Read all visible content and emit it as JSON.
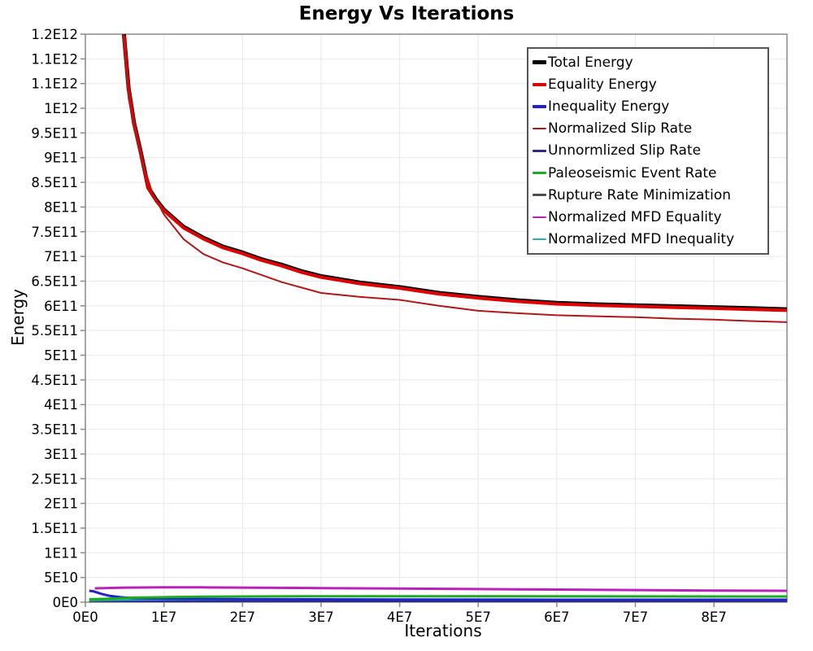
{
  "chart_data": {
    "type": "line",
    "title": "Energy Vs Iterations",
    "xlabel": "Iterations",
    "ylabel": "Energy",
    "grid": true,
    "legend_position": "top-right",
    "background_color": "#ffffff",
    "gridline_color": "#e9e9e9",
    "border_color": "#8a8a8a",
    "x_axis": {
      "min": 0,
      "max": 89300000.0,
      "ticks": [
        {
          "v": 0,
          "label": "0E0"
        },
        {
          "v": 10000000.0,
          "label": "1E7"
        },
        {
          "v": 20000000.0,
          "label": "2E7"
        },
        {
          "v": 30000000.0,
          "label": "3E7"
        },
        {
          "v": 40000000.0,
          "label": "4E7"
        },
        {
          "v": 50000000.0,
          "label": "5E7"
        },
        {
          "v": 60000000.0,
          "label": "6E7"
        },
        {
          "v": 70000000.0,
          "label": "7E7"
        },
        {
          "v": 80000000.0,
          "label": "8E7"
        }
      ]
    },
    "y_axis": {
      "min": 0,
      "max": 1150000000000.0,
      "ticks": [
        {
          "v": 1150000000000.0,
          "label": "1.2E12"
        },
        {
          "v": 1100000000000.0,
          "label": "1.1E12"
        },
        {
          "v": 1050000000000.0,
          "label": "1.1E12"
        },
        {
          "v": 1000000000000.0,
          "label": "1E12"
        },
        {
          "v": 950000000000.0,
          "label": "9.5E11"
        },
        {
          "v": 900000000000.0,
          "label": "9E11"
        },
        {
          "v": 850000000000.0,
          "label": "8.5E11"
        },
        {
          "v": 800000000000.0,
          "label": "8E11"
        },
        {
          "v": 750000000000.0,
          "label": "7.5E11"
        },
        {
          "v": 700000000000.0,
          "label": "7E11"
        },
        {
          "v": 650000000000.0,
          "label": "6.5E11"
        },
        {
          "v": 600000000000.0,
          "label": "6E11"
        },
        {
          "v": 550000000000.0,
          "label": "5.5E11"
        },
        {
          "v": 500000000000.0,
          "label": "5E11"
        },
        {
          "v": 450000000000.0,
          "label": "4.5E11"
        },
        {
          "v": 400000000000.0,
          "label": "4E11"
        },
        {
          "v": 350000000000.0,
          "label": "3.5E11"
        },
        {
          "v": 300000000000.0,
          "label": "3E11"
        },
        {
          "v": 250000000000.0,
          "label": "2.5E11"
        },
        {
          "v": 200000000000.0,
          "label": "2E11"
        },
        {
          "v": 150000000000.0,
          "label": "1.5E11"
        },
        {
          "v": 100000000000.0,
          "label": "1E11"
        },
        {
          "v": 50000000000.0,
          "label": "5E10"
        },
        {
          "v": 0,
          "label": "0E0"
        }
      ]
    },
    "series": [
      {
        "name": "Total Energy",
        "color": "#000000",
        "width": 5,
        "legend_thick": true,
        "points": [
          [
            4700000.0,
            1250000000000.0
          ],
          [
            4900000.0,
            1150000000000.0
          ],
          [
            5500000.0,
            1040000000000.0
          ],
          [
            6200000.0,
            970000000000.0
          ],
          [
            7000000.0,
            915000000000.0
          ],
          [
            8000000.0,
            840000000000.0
          ],
          [
            9000000.0,
            815000000000.0
          ],
          [
            10000000.0,
            795000000000.0
          ],
          [
            12500000.0,
            760000000000.0
          ],
          [
            15000000.0,
            738000000000.0
          ],
          [
            17500000.0,
            720000000000.0
          ],
          [
            20000000.0,
            708000000000.0
          ],
          [
            22500000.0,
            694000000000.0
          ],
          [
            25000000.0,
            683000000000.0
          ],
          [
            27500000.0,
            670000000000.0
          ],
          [
            30000000.0,
            660000000000.0
          ],
          [
            35000000.0,
            647000000000.0
          ],
          [
            40000000.0,
            638000000000.0
          ],
          [
            45000000.0,
            626000000000.0
          ],
          [
            50000000.0,
            618000000000.0
          ],
          [
            55000000.0,
            611000000000.0
          ],
          [
            60000000.0,
            606000000000.0
          ],
          [
            65000000.0,
            603000000000.0
          ],
          [
            70000000.0,
            601000000000.0
          ],
          [
            75000000.0,
            599000000000.0
          ],
          [
            80000000.0,
            597000000000.0
          ],
          [
            85000000.0,
            595000000000.0
          ],
          [
            89300000.0,
            593000000000.0
          ]
        ]
      },
      {
        "name": "Equality Energy",
        "color": "#e00000",
        "width": 4,
        "legend_thick": true,
        "points": [
          [
            4700000.0,
            1250000000000.0
          ],
          [
            4900000.0,
            1150000000000.0
          ],
          [
            5500000.0,
            1040000000000.0
          ],
          [
            6200000.0,
            970000000000.0
          ],
          [
            7000000.0,
            915000000000.0
          ],
          [
            8000000.0,
            840000000000.0
          ],
          [
            9000000.0,
            815000000000.0
          ],
          [
            10000000.0,
            795000000000.0
          ],
          [
            12500000.0,
            760000000000.0
          ],
          [
            15000000.0,
            738000000000.0
          ],
          [
            17500000.0,
            720000000000.0
          ],
          [
            20000000.0,
            708000000000.0
          ],
          [
            22500000.0,
            694000000000.0
          ],
          [
            25000000.0,
            683000000000.0
          ],
          [
            27500000.0,
            670000000000.0
          ],
          [
            30000000.0,
            660000000000.0
          ],
          [
            35000000.0,
            647000000000.0
          ],
          [
            40000000.0,
            638000000000.0
          ],
          [
            45000000.0,
            626000000000.0
          ],
          [
            50000000.0,
            618000000000.0
          ],
          [
            55000000.0,
            611000000000.0
          ],
          [
            60000000.0,
            606000000000.0
          ],
          [
            65000000.0,
            603000000000.0
          ],
          [
            70000000.0,
            601000000000.0
          ],
          [
            75000000.0,
            599000000000.0
          ],
          [
            80000000.0,
            597000000000.0
          ],
          [
            85000000.0,
            595000000000.0
          ],
          [
            89300000.0,
            593000000000.0
          ]
        ]
      },
      {
        "name": "Inequality Energy",
        "color": "#2222cc",
        "width": 3,
        "legend_thick": true,
        "points": [
          [
            500000.0,
            23000000000.0
          ],
          [
            1000000.0,
            22000000000.0
          ],
          [
            2000000.0,
            17000000000.0
          ],
          [
            3000000.0,
            13000000000.0
          ],
          [
            4500000.0,
            10000000000.0
          ],
          [
            6000000.0,
            8000000000.0
          ],
          [
            10000000.0,
            7000000000.0
          ],
          [
            20000000.0,
            6000000000.0
          ],
          [
            40000000.0,
            5500000000.0
          ],
          [
            60000000.0,
            5000000000.0
          ],
          [
            89300000.0,
            5000000000.0
          ]
        ]
      },
      {
        "name": "Normalized Slip Rate",
        "color": "#b01818",
        "width": 2,
        "legend_thick": false,
        "points": [
          [
            4600000.0,
            1250000000000.0
          ],
          [
            4800000.0,
            1150000000000.0
          ],
          [
            5500000.0,
            1020000000000.0
          ],
          [
            6500000.0,
            940000000000.0
          ],
          [
            7500000.0,
            880000000000.0
          ],
          [
            8500000.0,
            830000000000.0
          ],
          [
            10000000.0,
            785000000000.0
          ],
          [
            12500000.0,
            735000000000.0
          ],
          [
            15000000.0,
            705000000000.0
          ],
          [
            17500000.0,
            688000000000.0
          ],
          [
            20000000.0,
            676000000000.0
          ],
          [
            25000000.0,
            648000000000.0
          ],
          [
            30000000.0,
            626000000000.0
          ],
          [
            35000000.0,
            618000000000.0
          ],
          [
            40000000.0,
            612000000000.0
          ],
          [
            45000000.0,
            600000000000.0
          ],
          [
            50000000.0,
            590000000000.0
          ],
          [
            55000000.0,
            585000000000.0
          ],
          [
            60000000.0,
            581000000000.0
          ],
          [
            65000000.0,
            579000000000.0
          ],
          [
            70000000.0,
            577000000000.0
          ],
          [
            75000000.0,
            574000000000.0
          ],
          [
            80000000.0,
            572000000000.0
          ],
          [
            85000000.0,
            569000000000.0
          ],
          [
            89300000.0,
            567000000000.0
          ]
        ]
      },
      {
        "name": "Unnormlized Slip Rate",
        "color": "#2a2a8f",
        "width": 2,
        "legend_thick": false,
        "points": [
          [
            500000.0,
            3000000000.0
          ],
          [
            3000000.0,
            2000000000.0
          ],
          [
            10000000.0,
            1800000000.0
          ],
          [
            89300000.0,
            1800000000.0
          ]
        ]
      },
      {
        "name": "Paleoseismic Event Rate",
        "color": "#1faa1f",
        "width": 3,
        "legend_thick": false,
        "points": [
          [
            500000.0,
            6000000000.0
          ],
          [
            3000000.0,
            7000000000.0
          ],
          [
            6000000.0,
            9000000000.0
          ],
          [
            10000000.0,
            10000000000.0
          ],
          [
            15000000.0,
            11000000000.0
          ],
          [
            20000000.0,
            11500000000.0
          ],
          [
            30000000.0,
            12000000000.0
          ],
          [
            50000000.0,
            12000000000.0
          ],
          [
            89300000.0,
            11500000000.0
          ]
        ]
      },
      {
        "name": "Rupture Rate Minimization",
        "color": "#4d4d4d",
        "width": 2,
        "legend_thick": false,
        "points": [
          [
            500000.0,
            1500000000.0
          ],
          [
            5000000.0,
            1000000000.0
          ],
          [
            89300000.0,
            800000000.0
          ]
        ]
      },
      {
        "name": "Normalized MFD Equality",
        "color": "#bb22bb",
        "width": 3,
        "legend_thick": false,
        "points": [
          [
            1200000.0,
            28000000000.0
          ],
          [
            5000000.0,
            29500000000.0
          ],
          [
            10000000.0,
            30000000000.0
          ],
          [
            15000000.0,
            30000000000.0
          ],
          [
            20000000.0,
            29500000000.0
          ],
          [
            30000000.0,
            28500000000.0
          ],
          [
            40000000.0,
            27500000000.0
          ],
          [
            50000000.0,
            26500000000.0
          ],
          [
            60000000.0,
            25500000000.0
          ],
          [
            70000000.0,
            24500000000.0
          ],
          [
            80000000.0,
            23500000000.0
          ],
          [
            89300000.0,
            23000000000.0
          ]
        ]
      },
      {
        "name": "Normalized MFD Inequality",
        "color": "#22b5b5",
        "width": 2.5,
        "legend_thick": false,
        "points": [
          [
            500000.0,
            4000000000.0
          ],
          [
            5000000.0,
            5000000000.0
          ],
          [
            10000000.0,
            5500000000.0
          ],
          [
            20000000.0,
            5500000000.0
          ],
          [
            89300000.0,
            5000000000.0
          ]
        ]
      }
    ]
  }
}
